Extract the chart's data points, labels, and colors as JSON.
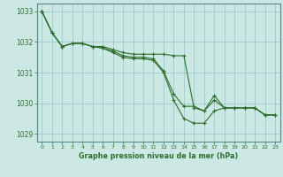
{
  "background_color": "#cce8e4",
  "grid_color": "#99cccc",
  "line_color": "#2d6e2d",
  "marker_color": "#2d6e2d",
  "xlabel": "Graphe pression niveau de la mer (hPa)",
  "ylim": [
    1028.75,
    1033.25
  ],
  "xlim": [
    -0.5,
    23.5
  ],
  "yticks": [
    1029,
    1030,
    1031,
    1032,
    1033
  ],
  "xticks": [
    0,
    1,
    2,
    3,
    4,
    5,
    6,
    7,
    8,
    9,
    10,
    11,
    12,
    13,
    14,
    15,
    16,
    17,
    18,
    19,
    20,
    21,
    22,
    23
  ],
  "series": [
    [
      1033.0,
      1032.3,
      1031.85,
      1031.95,
      1031.95,
      1031.85,
      1031.85,
      1031.75,
      1031.65,
      1031.6,
      1031.6,
      1031.6,
      1031.6,
      1031.55,
      1031.55,
      1029.85,
      1029.75,
      1030.25,
      1029.85,
      1029.85,
      1029.85,
      1029.85,
      1029.62,
      1029.62
    ],
    [
      1033.0,
      1032.3,
      1031.85,
      1031.95,
      1031.95,
      1031.85,
      1031.8,
      1031.7,
      1031.55,
      1031.5,
      1031.5,
      1031.45,
      1031.05,
      1030.3,
      1029.9,
      1029.9,
      1029.75,
      1030.1,
      1029.85,
      1029.85,
      1029.85,
      1029.85,
      1029.62,
      1029.62
    ],
    [
      1033.0,
      1032.3,
      1031.85,
      1031.95,
      1031.95,
      1031.85,
      1031.8,
      1031.65,
      1031.5,
      1031.45,
      1031.45,
      1031.4,
      1031.0,
      1030.1,
      1029.5,
      1029.35,
      1029.35,
      1029.75,
      1029.85,
      1029.85,
      1029.85,
      1029.85,
      1029.62,
      1029.62
    ]
  ]
}
